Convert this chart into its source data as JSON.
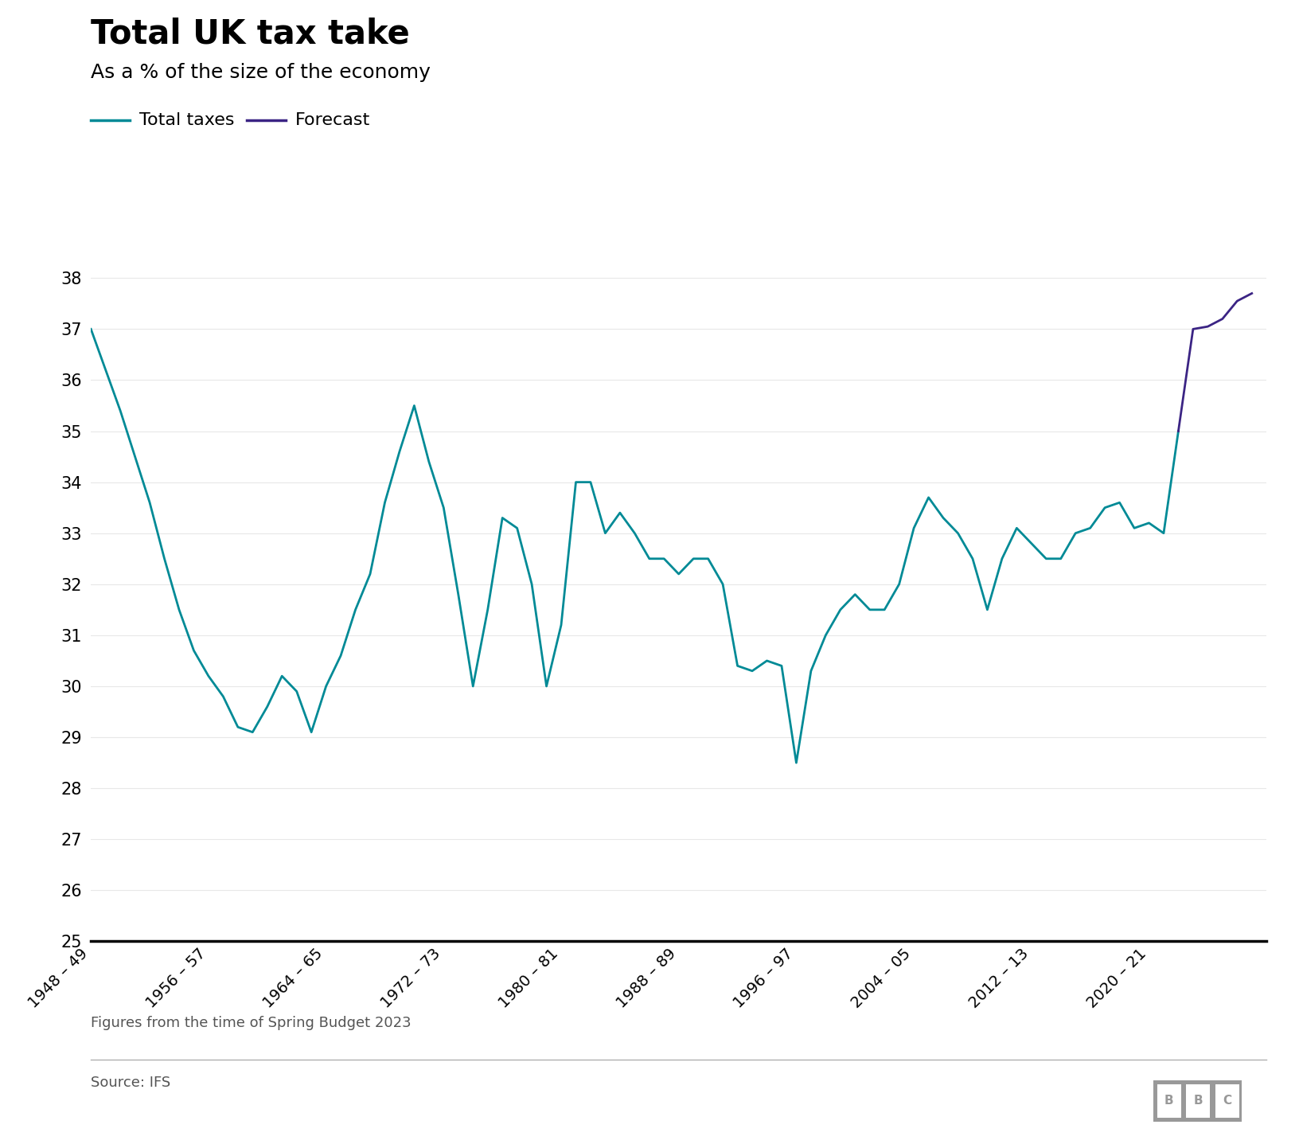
{
  "title": "Total UK tax take",
  "subtitle": "As a % of the size of the economy",
  "legend_total": "Total taxes",
  "legend_forecast": "Forecast",
  "footnote": "Figures from the time of Spring Budget 2023",
  "source": "Source: IFS",
  "total_taxes_x": [
    1948,
    1949,
    1950,
    1951,
    1952,
    1953,
    1954,
    1955,
    1956,
    1957,
    1958,
    1959,
    1960,
    1961,
    1962,
    1963,
    1964,
    1965,
    1966,
    1967,
    1968,
    1969,
    1970,
    1971,
    1972,
    1973,
    1974,
    1975,
    1976,
    1977,
    1978,
    1979,
    1980,
    1981,
    1982,
    1983,
    1984,
    1985,
    1986,
    1987,
    1988,
    1989,
    1990,
    1991,
    1992,
    1993,
    1994,
    1995,
    1996,
    1997,
    1998,
    1999,
    2000,
    2001,
    2002,
    2003,
    2004,
    2005,
    2006,
    2007,
    2008,
    2009,
    2010,
    2011,
    2012,
    2013,
    2014,
    2015,
    2016,
    2017,
    2018,
    2019,
    2020,
    2021,
    2022
  ],
  "total_taxes_y": [
    37.0,
    36.2,
    35.4,
    34.5,
    33.6,
    32.5,
    31.5,
    30.7,
    30.2,
    29.8,
    29.2,
    29.1,
    29.6,
    30.2,
    29.9,
    29.1,
    30.0,
    30.6,
    31.5,
    32.2,
    33.6,
    34.6,
    35.5,
    34.4,
    33.5,
    31.8,
    30.0,
    31.5,
    33.3,
    33.1,
    32.0,
    30.0,
    31.2,
    34.0,
    34.0,
    33.0,
    33.4,
    33.0,
    32.5,
    32.5,
    32.2,
    32.5,
    32.5,
    32.0,
    30.4,
    30.3,
    30.5,
    30.4,
    28.5,
    30.3,
    31.0,
    31.5,
    31.8,
    31.5,
    31.5,
    32.0,
    33.1,
    33.7,
    33.3,
    33.0,
    32.5,
    31.5,
    32.5,
    33.1,
    32.8,
    32.5,
    32.5,
    33.0,
    33.1,
    33.5,
    33.6,
    33.1,
    33.2,
    33.0,
    35.0
  ],
  "forecast_x": [
    2022,
    2023,
    2024,
    2025,
    2026,
    2027
  ],
  "forecast_y": [
    35.0,
    37.0,
    37.05,
    37.2,
    37.55,
    37.7
  ],
  "total_color": "#008a96",
  "forecast_color": "#3b2484",
  "ylim": [
    25,
    38.5
  ],
  "yticks": [
    25,
    26,
    27,
    28,
    29,
    30,
    31,
    32,
    33,
    34,
    35,
    36,
    37,
    38
  ],
  "xtick_positions": [
    1948,
    1956,
    1964,
    1972,
    1980,
    1988,
    1996,
    2004,
    2012,
    2020
  ],
  "xtick_labels": [
    "1948 – 49",
    "1956 – 57",
    "1964 – 65",
    "1972 – 73",
    "1980 – 81",
    "1988 – 89",
    "1996 – 97",
    "2004 – 05",
    "2012 – 13",
    "2020 – 21"
  ],
  "background_color": "#ffffff",
  "line_width": 2.0,
  "xlim_left": 1948,
  "xlim_right": 2028
}
